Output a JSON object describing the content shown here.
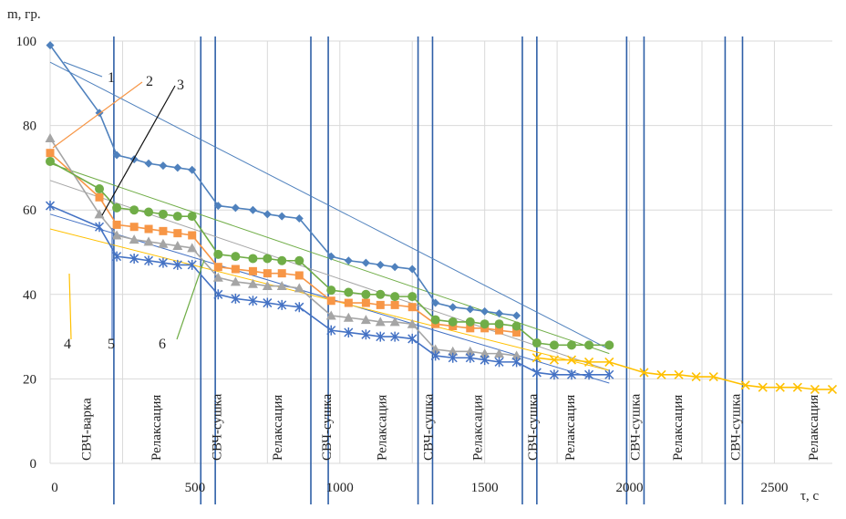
{
  "chart_data": {
    "type": "line",
    "title": "",
    "ylabel": "m, гр.",
    "xlabel": "τ, с",
    "xlim": [
      0,
      2700
    ],
    "ylim": [
      0,
      100
    ],
    "x_ticks": [
      0,
      500,
      1000,
      1500,
      2000,
      2500
    ],
    "y_ticks": [
      0,
      20,
      40,
      60,
      80,
      100
    ],
    "grid": true,
    "legend": "numbered callouts",
    "stage_boundaries": [
      220,
      520,
      570,
      900,
      960,
      1270,
      1320,
      1630,
      1680,
      1990,
      2050,
      2330,
      2390
    ],
    "stage_labels": [
      {
        "text": "СВЧ-варка",
        "x": 140
      },
      {
        "text": "Релаксация",
        "x": 380
      },
      {
        "text": "СВЧ-сушка",
        "x": 590
      },
      {
        "text": "Релаксация",
        "x": 800
      },
      {
        "text": "СВЧ-сушка",
        "x": 970
      },
      {
        "text": "Релаксация",
        "x": 1160
      },
      {
        "text": "СВЧ-сушка",
        "x": 1320
      },
      {
        "text": "Релаксация",
        "x": 1490
      },
      {
        "text": "СВЧ-сушка",
        "x": 1680
      },
      {
        "text": "Релаксация",
        "x": 1810
      },
      {
        "text": "СВЧ-сушка",
        "x": 2035
      },
      {
        "text": "Релаксация",
        "x": 2180
      },
      {
        "text": "СВЧ-сушка",
        "x": 2380
      },
      {
        "text": "Релаксация",
        "x": 2650
      }
    ],
    "callouts": [
      {
        "text": "1",
        "series": 0
      },
      {
        "text": "2",
        "series": 1
      },
      {
        "text": "3",
        "series": 2
      },
      {
        "text": "4",
        "series": 3
      },
      {
        "text": "5",
        "series": 4
      },
      {
        "text": "6",
        "series": 5
      }
    ],
    "series": [
      {
        "color": "#4f81bd",
        "marker": "diamond",
        "x": [
          0,
          170,
          230,
          290,
          340,
          390,
          440,
          490,
          580,
          640,
          700,
          750,
          800,
          860,
          970,
          1030,
          1090,
          1140,
          1190,
          1250,
          1330,
          1390,
          1450,
          1500,
          1550,
          1610
        ],
        "y": [
          99,
          83,
          73,
          72,
          71,
          70.5,
          70,
          69.5,
          61,
          60.5,
          60,
          59,
          58.5,
          58,
          49,
          48,
          47.5,
          47,
          46.5,
          46,
          38,
          37,
          36.5,
          36,
          35.5,
          35
        ]
      },
      {
        "color": "#f79646",
        "marker": "square",
        "x": [
          0,
          170,
          230,
          290,
          340,
          390,
          440,
          490,
          580,
          640,
          700,
          750,
          800,
          860,
          970,
          1030,
          1090,
          1140,
          1190,
          1250,
          1330,
          1390,
          1450,
          1500,
          1550,
          1610
        ],
        "y": [
          73.5,
          63,
          56.5,
          56,
          55.5,
          55,
          54.5,
          54,
          46.5,
          46,
          45.5,
          45,
          45,
          44.5,
          38.5,
          38,
          38,
          37.5,
          37.5,
          37,
          33,
          32.5,
          32,
          32,
          31.5,
          31
        ]
      },
      {
        "color": "#a5a5a5",
        "marker": "triangle",
        "x": [
          0,
          170,
          230,
          290,
          340,
          390,
          440,
          490,
          580,
          640,
          700,
          750,
          800,
          860,
          970,
          1030,
          1090,
          1140,
          1190,
          1250,
          1330,
          1390,
          1450,
          1500,
          1550,
          1610
        ],
        "y": [
          77,
          59,
          54,
          53,
          52.5,
          52,
          51.5,
          51,
          44,
          43,
          42.5,
          42,
          42,
          41.5,
          35,
          34.5,
          34,
          33.5,
          33.5,
          33,
          27,
          26.5,
          26.5,
          26,
          26,
          25.5
        ]
      },
      {
        "color": "#ffc000",
        "marker": "cross",
        "x": [
          1680,
          1740,
          1800,
          1860,
          1930,
          2050,
          2110,
          2170,
          2230,
          2290,
          2400,
          2460,
          2520,
          2580,
          2640,
          2700
        ],
        "y": [
          25,
          24.5,
          24.5,
          24,
          24,
          21.5,
          21,
          21,
          20.5,
          20.5,
          18.5,
          18,
          18,
          18,
          17.5,
          17.5
        ]
      },
      {
        "color": "#4472c4",
        "marker": "star",
        "x": [
          0,
          170,
          230,
          290,
          340,
          390,
          440,
          490,
          580,
          640,
          700,
          750,
          800,
          860,
          970,
          1030,
          1090,
          1140,
          1190,
          1250,
          1330,
          1390,
          1450,
          1500,
          1550,
          1610,
          1680,
          1740,
          1800,
          1860,
          1930
        ],
        "y": [
          61,
          56,
          49,
          48.5,
          48,
          47.5,
          47,
          47,
          40,
          39,
          38.5,
          38,
          37.5,
          37,
          31.5,
          31,
          30.5,
          30,
          30,
          29.5,
          25.5,
          25,
          25,
          24.5,
          24,
          24,
          21.5,
          21,
          21,
          21,
          21
        ]
      },
      {
        "color": "#70ad47",
        "marker": "circle",
        "x": [
          0,
          170,
          230,
          290,
          340,
          390,
          440,
          490,
          580,
          640,
          700,
          750,
          800,
          860,
          970,
          1030,
          1090,
          1140,
          1190,
          1250,
          1330,
          1390,
          1450,
          1500,
          1550,
          1610,
          1680,
          1740,
          1800,
          1860,
          1930
        ],
        "y": [
          71.5,
          65,
          60.5,
          60,
          59.5,
          59,
          58.5,
          58.5,
          49.5,
          49,
          48.5,
          48.5,
          48,
          48,
          41,
          40.5,
          40,
          40,
          39.5,
          39.5,
          34,
          33.5,
          33.5,
          33,
          33,
          32.5,
          28.5,
          28,
          28,
          28,
          28
        ]
      }
    ],
    "trendlines": [
      {
        "color": "#4f81bd",
        "x": [
          0,
          1930
        ],
        "y": [
          95,
          27
        ]
      },
      {
        "color": "#a5a5a5",
        "x": [
          0,
          1930
        ],
        "y": [
          67,
          22
        ]
      },
      {
        "color": "#4472c4",
        "x": [
          0,
          1930
        ],
        "y": [
          59,
          19
        ]
      },
      {
        "color": "#ffc000",
        "x": [
          0,
          1930
        ],
        "y": [
          55.5,
          22
        ]
      },
      {
        "color": "#70ad47",
        "x": [
          0,
          1930
        ],
        "y": [
          71,
          26
        ]
      }
    ]
  }
}
